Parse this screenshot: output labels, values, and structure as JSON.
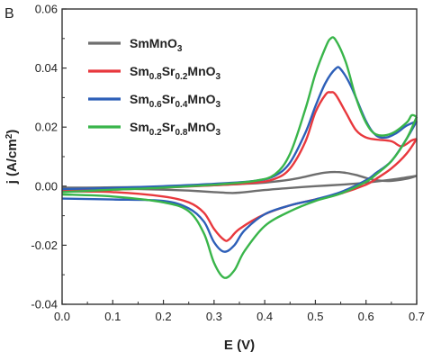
{
  "chart_data": {
    "type": "line",
    "panel_label": "B",
    "xlabel": "E (V)",
    "ylabel_main": "j (A/cm",
    "ylabel_sup": "2",
    "ylabel_end": ")",
    "xlim": [
      0.0,
      0.7
    ],
    "ylim": [
      -0.04,
      0.06
    ],
    "xticks": [
      "0.0",
      "0.1",
      "0.2",
      "0.3",
      "0.4",
      "0.5",
      "0.6",
      "0.7"
    ],
    "yticks": [
      "-0.04",
      "-0.02",
      "0.00",
      "0.02",
      "0.04",
      "0.06"
    ],
    "grid": false,
    "legend_position": "top-center",
    "series": [
      {
        "name": "SmMnO3",
        "legend_parts": [
          {
            "t": "SmMnO",
            "s": null
          },
          {
            "t": "3",
            "s": "sub"
          }
        ],
        "color": "#6e6e6e",
        "forward": [
          [
            0.0,
            -0.0005
          ],
          [
            0.05,
            -0.0005
          ],
          [
            0.1,
            -0.0004
          ],
          [
            0.15,
            -0.0003
          ],
          [
            0.2,
            -0.0002
          ],
          [
            0.25,
            0.0
          ],
          [
            0.3,
            0.0003
          ],
          [
            0.35,
            0.0007
          ],
          [
            0.4,
            0.0012
          ],
          [
            0.45,
            0.0022
          ],
          [
            0.48,
            0.0032
          ],
          [
            0.5,
            0.004
          ],
          [
            0.52,
            0.0046
          ],
          [
            0.54,
            0.0048
          ],
          [
            0.56,
            0.0045
          ],
          [
            0.58,
            0.0038
          ],
          [
            0.6,
            0.0028
          ],
          [
            0.62,
            0.002
          ],
          [
            0.65,
            0.0018
          ],
          [
            0.68,
            0.0025
          ],
          [
            0.7,
            0.0035
          ]
        ],
        "reverse": [
          [
            0.7,
            0.0035
          ],
          [
            0.65,
            0.0022
          ],
          [
            0.6,
            0.0012
          ],
          [
            0.55,
            0.0005
          ],
          [
            0.5,
            0.0
          ],
          [
            0.45,
            -0.0006
          ],
          [
            0.4,
            -0.0013
          ],
          [
            0.35,
            -0.0022
          ],
          [
            0.33,
            -0.0023
          ],
          [
            0.3,
            -0.002
          ],
          [
            0.25,
            -0.0015
          ],
          [
            0.2,
            -0.0012
          ],
          [
            0.1,
            -0.0008
          ],
          [
            0.0,
            -0.0006
          ]
        ]
      },
      {
        "name": "Sm0.8Sr0.2MnO3",
        "legend_parts": [
          {
            "t": "Sm",
            "s": null
          },
          {
            "t": "0.8",
            "s": "sub"
          },
          {
            "t": "Sr",
            "s": null
          },
          {
            "t": "0.2",
            "s": "sub"
          },
          {
            "t": "MnO",
            "s": null
          },
          {
            "t": "3",
            "s": "sub"
          }
        ],
        "color": "#e8383d",
        "forward": [
          [
            0.0,
            -0.0015
          ],
          [
            0.1,
            -0.0012
          ],
          [
            0.2,
            -0.0005
          ],
          [
            0.3,
            0.0003
          ],
          [
            0.38,
            0.0012
          ],
          [
            0.42,
            0.0025
          ],
          [
            0.45,
            0.006
          ],
          [
            0.48,
            0.015
          ],
          [
            0.5,
            0.025
          ],
          [
            0.52,
            0.031
          ],
          [
            0.53,
            0.0318
          ],
          [
            0.54,
            0.031
          ],
          [
            0.56,
            0.025
          ],
          [
            0.58,
            0.019
          ],
          [
            0.6,
            0.0165
          ],
          [
            0.62,
            0.0158
          ],
          [
            0.65,
            0.0152
          ],
          [
            0.67,
            0.0135
          ],
          [
            0.69,
            0.0155
          ],
          [
            0.7,
            0.016
          ]
        ],
        "reverse": [
          [
            0.7,
            0.016
          ],
          [
            0.68,
            0.011
          ],
          [
            0.65,
            0.006
          ],
          [
            0.62,
            0.0025
          ],
          [
            0.6,
            0.0005
          ],
          [
            0.55,
            -0.0025
          ],
          [
            0.5,
            -0.0045
          ],
          [
            0.45,
            -0.0065
          ],
          [
            0.4,
            -0.0095
          ],
          [
            0.35,
            -0.0145
          ],
          [
            0.33,
            -0.018
          ],
          [
            0.32,
            -0.0182
          ],
          [
            0.3,
            -0.0145
          ],
          [
            0.28,
            -0.009
          ],
          [
            0.25,
            -0.0055
          ],
          [
            0.2,
            -0.0035
          ],
          [
            0.1,
            -0.002
          ],
          [
            0.0,
            -0.0018
          ]
        ]
      },
      {
        "name": "Sm0.6Sr0.4MnO3",
        "legend_parts": [
          {
            "t": "Sm",
            "s": null
          },
          {
            "t": "0.6",
            "s": "sub"
          },
          {
            "t": "Sr",
            "s": null
          },
          {
            "t": "0.4",
            "s": "sub"
          },
          {
            "t": "MnO",
            "s": null
          },
          {
            "t": "3",
            "s": "sub"
          }
        ],
        "color": "#2d5fb8",
        "forward": [
          [
            0.0,
            -0.001
          ],
          [
            0.1,
            -0.0006
          ],
          [
            0.2,
            0.0
          ],
          [
            0.3,
            0.0008
          ],
          [
            0.38,
            0.0018
          ],
          [
            0.42,
            0.0035
          ],
          [
            0.45,
            0.008
          ],
          [
            0.48,
            0.018
          ],
          [
            0.5,
            0.027
          ],
          [
            0.52,
            0.035
          ],
          [
            0.54,
            0.0398
          ],
          [
            0.55,
            0.0396
          ],
          [
            0.57,
            0.034
          ],
          [
            0.6,
            0.022
          ],
          [
            0.62,
            0.0172
          ],
          [
            0.64,
            0.0165
          ],
          [
            0.66,
            0.018
          ],
          [
            0.68,
            0.0205
          ],
          [
            0.7,
            0.022
          ]
        ],
        "reverse": [
          [
            0.7,
            0.022
          ],
          [
            0.68,
            0.016
          ],
          [
            0.65,
            0.0085
          ],
          [
            0.62,
            0.0045
          ],
          [
            0.6,
            0.002
          ],
          [
            0.55,
            -0.002
          ],
          [
            0.5,
            -0.0045
          ],
          [
            0.45,
            -0.0065
          ],
          [
            0.4,
            -0.0095
          ],
          [
            0.36,
            -0.015
          ],
          [
            0.34,
            -0.02
          ],
          [
            0.32,
            -0.0222
          ],
          [
            0.3,
            -0.019
          ],
          [
            0.28,
            -0.012
          ],
          [
            0.25,
            -0.0075
          ],
          [
            0.2,
            -0.005
          ],
          [
            0.1,
            -0.0045
          ],
          [
            0.0,
            -0.0042
          ]
        ]
      },
      {
        "name": "Sm0.2Sr0.8MnO3",
        "legend_parts": [
          {
            "t": "Sm",
            "s": null
          },
          {
            "t": "0.2",
            "s": "sub"
          },
          {
            "t": "Sr",
            "s": null
          },
          {
            "t": "0.8",
            "s": "sub"
          },
          {
            "t": "MnO",
            "s": null
          },
          {
            "t": "3",
            "s": "sub"
          }
        ],
        "color": "#39b54a",
        "forward": [
          [
            0.0,
            -0.002
          ],
          [
            0.1,
            -0.0012
          ],
          [
            0.2,
            -0.0005
          ],
          [
            0.3,
            0.0005
          ],
          [
            0.38,
            0.0018
          ],
          [
            0.42,
            0.004
          ],
          [
            0.45,
            0.011
          ],
          [
            0.48,
            0.026
          ],
          [
            0.5,
            0.038
          ],
          [
            0.52,
            0.047
          ],
          [
            0.53,
            0.05
          ],
          [
            0.54,
            0.0495
          ],
          [
            0.56,
            0.042
          ],
          [
            0.58,
            0.03
          ],
          [
            0.6,
            0.0215
          ],
          [
            0.62,
            0.0175
          ],
          [
            0.65,
            0.0178
          ],
          [
            0.68,
            0.0215
          ],
          [
            0.69,
            0.024
          ],
          [
            0.7,
            0.0235
          ]
        ],
        "reverse": [
          [
            0.7,
            0.0235
          ],
          [
            0.68,
            0.016
          ],
          [
            0.65,
            0.0085
          ],
          [
            0.62,
            0.004
          ],
          [
            0.6,
            0.0015
          ],
          [
            0.55,
            -0.0025
          ],
          [
            0.5,
            -0.005
          ],
          [
            0.45,
            -0.0085
          ],
          [
            0.4,
            -0.0135
          ],
          [
            0.36,
            -0.022
          ],
          [
            0.34,
            -0.0285
          ],
          [
            0.32,
            -0.031
          ],
          [
            0.3,
            -0.026
          ],
          [
            0.28,
            -0.016
          ],
          [
            0.25,
            -0.0085
          ],
          [
            0.2,
            -0.0055
          ],
          [
            0.1,
            -0.0035
          ],
          [
            0.0,
            -0.0028
          ]
        ]
      }
    ]
  }
}
